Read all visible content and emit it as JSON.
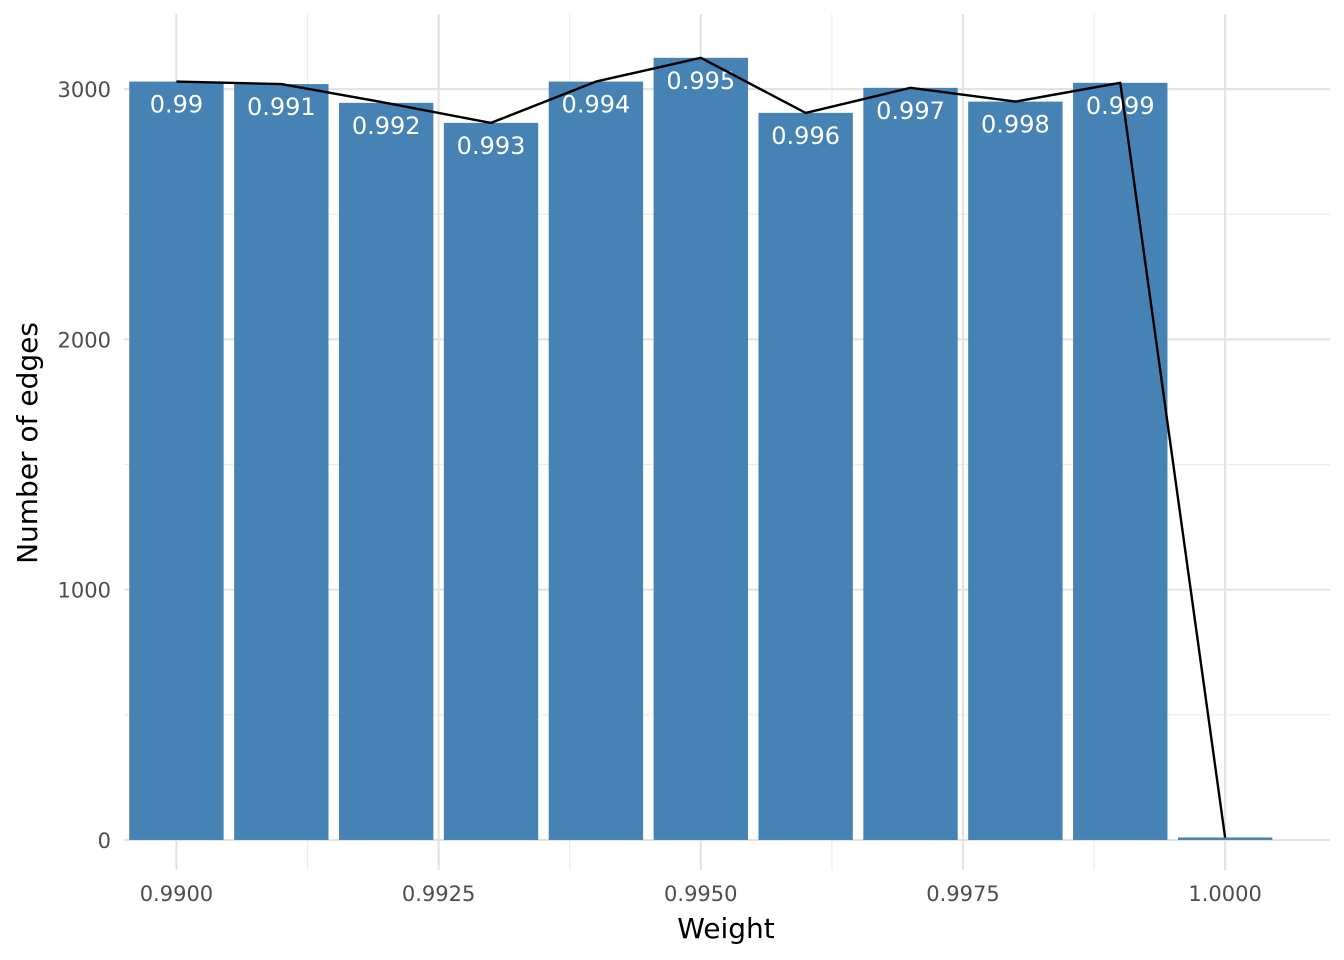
{
  "chart_data": {
    "type": "bar",
    "xlabel": "Weight",
    "ylabel": "Number of edges",
    "x": [
      0.99,
      0.991,
      0.992,
      0.993,
      0.994,
      0.995,
      0.996,
      0.997,
      0.998,
      0.999,
      1.0
    ],
    "values": [
      3030,
      3020,
      2945,
      2865,
      3030,
      3125,
      2905,
      3005,
      2950,
      3025,
      10
    ],
    "bar_labels": [
      "0.99",
      "0.991",
      "0.992",
      "0.993",
      "0.994",
      "0.995",
      "0.996",
      "0.997",
      "0.998",
      "0.999",
      ""
    ],
    "xlim": [
      0.9895,
      1.001
    ],
    "ylim": [
      -120,
      3300
    ],
    "x_ticks": [
      {
        "value": 0.99,
        "label": "0.9900"
      },
      {
        "value": 0.9925,
        "label": "0.9925"
      },
      {
        "value": 0.995,
        "label": "0.9950"
      },
      {
        "value": 0.9975,
        "label": "0.9975"
      },
      {
        "value": 1.0,
        "label": "1.0000"
      }
    ],
    "y_ticks": [
      {
        "value": 0,
        "label": "0"
      },
      {
        "value": 1000,
        "label": "1000"
      },
      {
        "value": 2000,
        "label": "2000"
      },
      {
        "value": 3000,
        "label": "3000"
      }
    ],
    "grid": true,
    "bar_color": "#4682B4",
    "line_color": "#000000",
    "line_overlay": true
  }
}
